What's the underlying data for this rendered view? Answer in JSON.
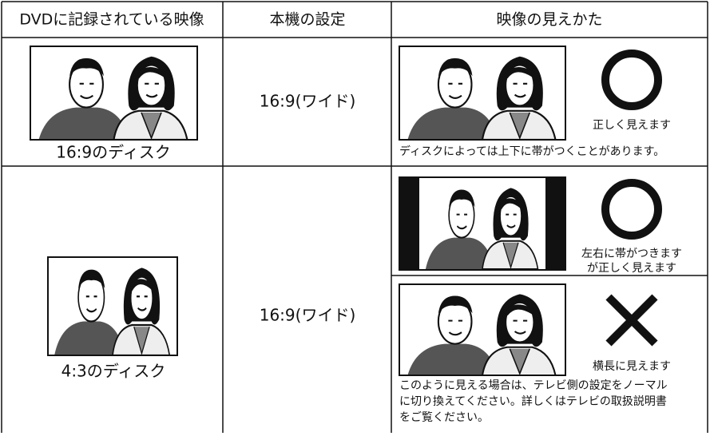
{
  "header": [
    "DVDに記録されている映像",
    "本機の設定",
    "映像の見えかた"
  ],
  "rows": [
    {
      "disc": "16:9のディスク",
      "setting": "16:9(ワイド)",
      "results": [
        {
          "verdict": [
            "正しく見えます"
          ]
        }
      ],
      "note": [
        "ディスクによっては上下に帯がつくことがあります。"
      ]
    },
    {
      "disc": "4:3のディスク",
      "setting": "16:9(ワイド)",
      "results": [
        {
          "verdict": [
            "左右に帯がつきます",
            "が正しく見えます"
          ]
        },
        {
          "verdict": [
            "横長に見えます"
          ],
          "note": [
            "このように見える場合は、テレビ側の設定をノーマル",
            "に切り換えてください。詳しくはテレビの取扱説明書",
            "をご覧ください。"
          ]
        }
      ]
    }
  ]
}
